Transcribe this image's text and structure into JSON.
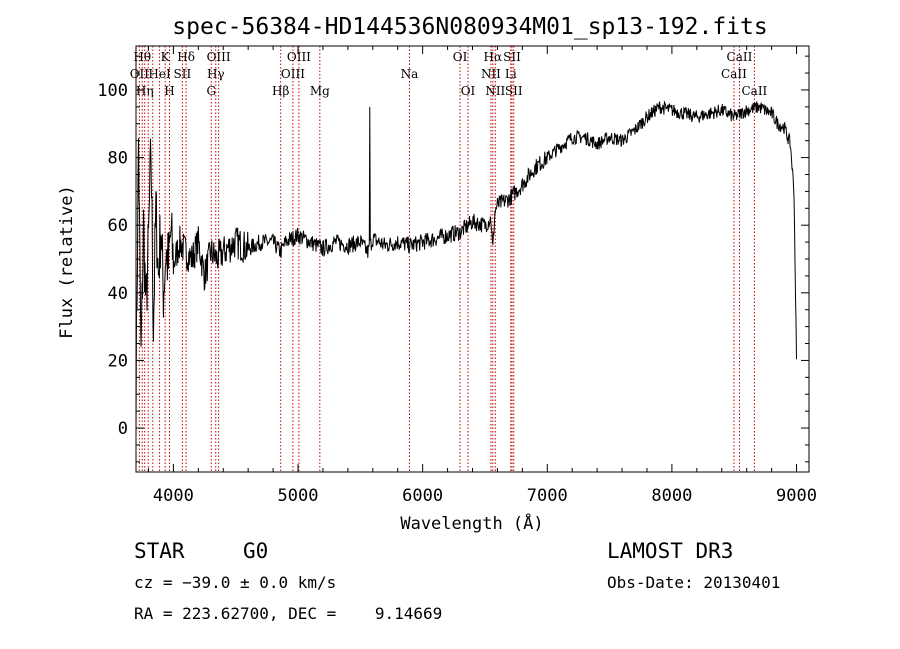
{
  "chart_data": {
    "type": "line",
    "title": "spec-56384-HD144536N080934M01_sp13-192.fits",
    "xlabel": "Wavelength (Å)",
    "ylabel": "Flux (relative)",
    "xlim": [
      3700,
      9100
    ],
    "ylim": [
      -13,
      113
    ],
    "xticks": [
      4000,
      5000,
      6000,
      7000,
      8000,
      9000
    ],
    "yticks": [
      0,
      20,
      40,
      60,
      80,
      100
    ],
    "grid": false,
    "series": [
      {
        "name": "spectrum",
        "x": [
          3700,
          3720,
          3740,
          3760,
          3780,
          3800,
          3820,
          3840,
          3860,
          3880,
          3900,
          3920,
          3940,
          3960,
          3980,
          4000,
          4050,
          4100,
          4150,
          4200,
          4250,
          4300,
          4350,
          4400,
          4500,
          4600,
          4700,
          4800,
          4860,
          4900,
          5000,
          5100,
          5200,
          5300,
          5400,
          5500,
          5560,
          5600,
          5700,
          5800,
          5900,
          6000,
          6100,
          6200,
          6300,
          6400,
          6500,
          6550,
          6562,
          6580,
          6600,
          6700,
          6800,
          6900,
          7000,
          7100,
          7200,
          7300,
          7400,
          7500,
          7600,
          7700,
          7800,
          7900,
          8000,
          8100,
          8200,
          8300,
          8400,
          8500,
          8600,
          8700,
          8800,
          8850,
          8900,
          8950,
          8980,
          9000
        ],
        "y": [
          10,
          85,
          20,
          60,
          35,
          55,
          82,
          30,
          65,
          45,
          60,
          40,
          52,
          48,
          58,
          48,
          55,
          52,
          50,
          55,
          45,
          52,
          50,
          52,
          55,
          53,
          55,
          55,
          52,
          55,
          57,
          55,
          53,
          55,
          54,
          55,
          52,
          56,
          54,
          55,
          54,
          55,
          56,
          57,
          58,
          61,
          60,
          62,
          52,
          64,
          66,
          68,
          72,
          77,
          80,
          83,
          86,
          86,
          84,
          86,
          85,
          88,
          92,
          95,
          94,
          93,
          92,
          93,
          94,
          92,
          94,
          95,
          93,
          90,
          89,
          84,
          70,
          20
        ]
      }
    ],
    "lines": [
      {
        "x": 3727,
        "labels": [
          "OII"
        ]
      },
      {
        "x": 3750,
        "labels": [
          "Hθ"
        ]
      },
      {
        "x": 3770,
        "labels": [
          "Hη"
        ]
      },
      {
        "x": 3798,
        "labels": [
          "Hθ"
        ]
      },
      {
        "x": 3835,
        "labels": [
          "Hη"
        ]
      },
      {
        "x": 3889,
        "labels": [
          "HeI"
        ]
      },
      {
        "x": 3934,
        "labels": [
          "K"
        ]
      },
      {
        "x": 3969,
        "labels": [
          "H"
        ]
      },
      {
        "x": 4072,
        "labels": [
          "SII"
        ]
      },
      {
        "x": 4102,
        "labels": [
          "Hδ"
        ]
      },
      {
        "x": 4304,
        "labels": [
          "G"
        ]
      },
      {
        "x": 4340,
        "labels": [
          "Hγ"
        ]
      },
      {
        "x": 4363,
        "labels": [
          "OIII"
        ]
      },
      {
        "x": 4861,
        "labels": [
          "Hβ"
        ]
      },
      {
        "x": 4959,
        "labels": [
          "OIII"
        ]
      },
      {
        "x": 5007,
        "labels": [
          "OIII"
        ]
      },
      {
        "x": 5175,
        "labels": [
          "Mg"
        ]
      },
      {
        "x": 5894,
        "labels": [
          "Na"
        ]
      },
      {
        "x": 6300,
        "labels": [
          "OI"
        ]
      },
      {
        "x": 6364,
        "labels": [
          "OI"
        ]
      },
      {
        "x": 6548,
        "labels": [
          "NII"
        ]
      },
      {
        "x": 6563,
        "labels": [
          "Hα"
        ]
      },
      {
        "x": 6583,
        "labels": [
          "NII"
        ]
      },
      {
        "x": 6707,
        "labels": [
          "Li"
        ]
      },
      {
        "x": 6717,
        "labels": [
          "SII"
        ]
      },
      {
        "x": 6731,
        "labels": [
          "SII"
        ]
      },
      {
        "x": 8498,
        "labels": [
          "CaII"
        ]
      },
      {
        "x": 8542,
        "labels": [
          "CaII"
        ]
      },
      {
        "x": 8662,
        "labels": [
          "CaII"
        ]
      }
    ],
    "line_labels": [
      {
        "text": "Hθ",
        "x": 3750,
        "row": 0
      },
      {
        "text": "K",
        "x": 3934,
        "row": 0
      },
      {
        "text": "Hδ",
        "x": 4102,
        "row": 0
      },
      {
        "text": "OIII",
        "x": 4363,
        "row": 0
      },
      {
        "text": "OIII",
        "x": 5007,
        "row": 0
      },
      {
        "text": "OI",
        "x": 6300,
        "row": 0
      },
      {
        "text": "Hα",
        "x": 6563,
        "row": 0
      },
      {
        "text": "SII",
        "x": 6717,
        "row": 0
      },
      {
        "text": "CaII",
        "x": 8542,
        "row": 0
      },
      {
        "text": "OII",
        "x": 3727,
        "row": 1
      },
      {
        "text": "HeI",
        "x": 3889,
        "row": 1
      },
      {
        "text": "SII",
        "x": 4072,
        "row": 1
      },
      {
        "text": "Hγ",
        "x": 4340,
        "row": 1
      },
      {
        "text": "OIII",
        "x": 4959,
        "row": 1
      },
      {
        "text": "Na",
        "x": 5894,
        "row": 1
      },
      {
        "text": "NII",
        "x": 6548,
        "row": 1
      },
      {
        "text": "Li",
        "x": 6707,
        "row": 1
      },
      {
        "text": "CaII",
        "x": 8498,
        "row": 1
      },
      {
        "text": "Hη",
        "x": 3770,
        "row": 2
      },
      {
        "text": "H",
        "x": 3969,
        "row": 2
      },
      {
        "text": "G",
        "x": 4304,
        "row": 2
      },
      {
        "text": "Hβ",
        "x": 4861,
        "row": 2
      },
      {
        "text": "Mg",
        "x": 5175,
        "row": 2
      },
      {
        "text": "OI",
        "x": 6364,
        "row": 2
      },
      {
        "text": "NII",
        "x": 6583,
        "row": 2
      },
      {
        "text": "SII",
        "x": 6731,
        "row": 2
      },
      {
        "text": "CaII",
        "x": 8662,
        "row": 2
      }
    ]
  },
  "info": {
    "object_class": "STAR",
    "subclass": "G0",
    "cz": "cz = −39.0 ± 0.0 km/s",
    "radec": "RA = 223.62700, DEC =    9.14669",
    "survey": "LAMOST DR3",
    "obs_date": "Obs-Date: 20130401"
  }
}
